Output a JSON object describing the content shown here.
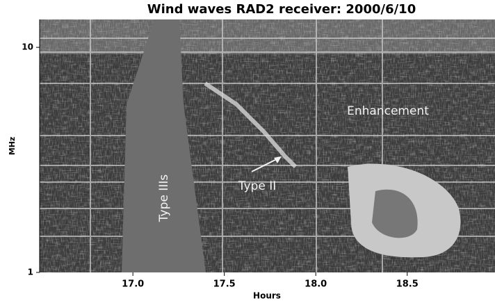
{
  "chart_data": {
    "type": "spectrogram",
    "title": "Wind  waves RAD2 receiver: 2000/6/10",
    "x_label": "Hours",
    "y_label": "MHz",
    "xlim": [
      16.49,
      18.98
    ],
    "xticks": [
      {
        "value": 17,
        "label": "17.0"
      },
      17.5,
      {
        "value": 18,
        "label": "18.0"
      },
      18.5
    ],
    "ylim": [
      1,
      13.3
    ],
    "yticks": [
      1,
      10
    ],
    "y_scale": "log",
    "annotations": [
      "Type IIIs",
      "Type II",
      "Enhancement"
    ]
  }
}
